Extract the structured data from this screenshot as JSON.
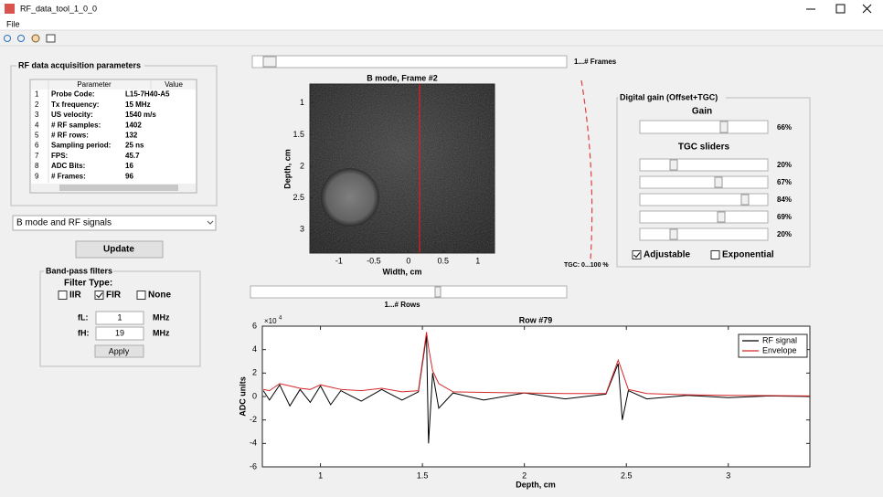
{
  "window": {
    "title": "RF_data_tool_1_0_0",
    "menu": [
      "File"
    ]
  },
  "acquisition": {
    "title": "RF data acquisition parameters",
    "columns": [
      "Parameter",
      "Value"
    ],
    "rows": [
      [
        "1",
        "Probe Code:",
        "L15-7H40-A5"
      ],
      [
        "2",
        "Tx frequency:",
        "15 MHz"
      ],
      [
        "3",
        "US velocity:",
        "1540 m/s"
      ],
      [
        "4",
        "# RF samples:",
        "1402"
      ],
      [
        "5",
        "# RF rows:",
        "132"
      ],
      [
        "6",
        "Sampling period:",
        "25 ns"
      ],
      [
        "7",
        "FPS:",
        "45.7"
      ],
      [
        "8",
        "ADC Bits:",
        "16"
      ],
      [
        "9",
        "# Frames:",
        "96"
      ]
    ]
  },
  "mode_select": "B mode and RF signals",
  "update_button": "Update",
  "filters": {
    "title": "Band-pass filters",
    "type_label": "Filter Type:",
    "options": [
      {
        "label": "IIR",
        "checked": false
      },
      {
        "label": "FIR",
        "checked": true
      },
      {
        "label": "None",
        "checked": false
      }
    ],
    "fL": {
      "label": "fL:",
      "value": "1",
      "unit": "MHz"
    },
    "fH": {
      "label": "fH:",
      "value": "19",
      "unit": "MHz"
    },
    "apply": "Apply"
  },
  "frames_slider": "1...# Frames",
  "rows_slider": "1...# Rows",
  "tgc_scale": "TGC: 0...100 %",
  "bmode": {
    "title": "B mode, Frame #2",
    "x_label": "Width, cm",
    "y_label": "Depth, cm",
    "xlim": [
      -1.42,
      1.24
    ],
    "ylim": [
      0.7,
      3.37
    ],
    "xticks": [
      -1,
      -0.5,
      0,
      0.5,
      1
    ],
    "yticks": [
      1,
      1.5,
      2,
      2.5,
      3
    ]
  },
  "gain": {
    "title": "Digital gain (Offset+TGC)",
    "gain_label": "Gain",
    "gain_value": "66%",
    "tgc_label": "TGC sliders",
    "tgc_values": [
      "20%",
      "67%",
      "84%",
      "69%",
      "20%"
    ],
    "options": [
      {
        "label": "Adjustable",
        "checked": true
      },
      {
        "label": "Exponential",
        "checked": false
      }
    ]
  },
  "chart_data": {
    "type": "line",
    "title": "Row #79",
    "x_label": "Depth, cm",
    "y_label": "ADC units",
    "y_multiplier": {
      "base": "×10",
      "exponent": "4"
    },
    "xlim": [
      0.715,
      3.4
    ],
    "ylim": [
      -6,
      6
    ],
    "xticks": [
      1,
      1.5,
      2,
      2.5,
      3
    ],
    "yticks": [
      -6,
      -4,
      -2,
      0,
      2,
      4,
      6
    ],
    "grid": false,
    "legend": "upper right",
    "x": [
      0.72,
      0.75,
      0.8,
      0.85,
      0.9,
      0.95,
      1.0,
      1.05,
      1.1,
      1.2,
      1.3,
      1.4,
      1.48,
      1.52,
      1.53,
      1.55,
      1.58,
      1.65,
      1.8,
      2.0,
      2.2,
      2.4,
      2.46,
      2.48,
      2.51,
      2.6,
      2.8,
      3.0,
      3.2,
      3.4
    ],
    "series": [
      {
        "name": "RF signal",
        "color": "#000000",
        "values": [
          0.5,
          -0.3,
          1.0,
          -0.8,
          0.6,
          -0.5,
          0.9,
          -0.7,
          0.5,
          -0.4,
          0.6,
          -0.3,
          0.4,
          5.2,
          -4.0,
          2.0,
          -1.0,
          0.3,
          -0.3,
          0.3,
          -0.2,
          0.2,
          2.8,
          -2.0,
          0.5,
          -0.2,
          0.1,
          -0.1,
          0.05,
          0
        ]
      },
      {
        "name": "Envelope",
        "color": "#d62728",
        "values": [
          0.6,
          0.5,
          1.1,
          0.9,
          0.7,
          0.6,
          1.0,
          0.8,
          0.6,
          0.5,
          0.7,
          0.4,
          0.5,
          5.5,
          4.2,
          2.2,
          1.1,
          0.4,
          0.35,
          0.3,
          0.25,
          0.25,
          3.1,
          2.1,
          0.6,
          0.25,
          0.15,
          0.1,
          0.08,
          0.05
        ]
      }
    ]
  }
}
